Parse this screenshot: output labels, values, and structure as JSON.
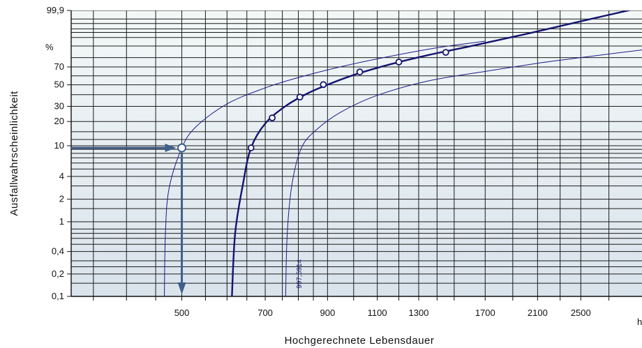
{
  "chart_data": {
    "type": "line",
    "title": "",
    "xlabel": "Hochgerechnete Lebensdauer",
    "ylabel": "Ausfallwahrscheinlichkeit",
    "x_unit_label": "h",
    "y_unit_label": "%",
    "x_scale": "log",
    "xlim": [
      320,
      3200
    ],
    "ylim": [
      0.1,
      99.9
    ],
    "y_scale": "weibull",
    "x_ticks": [
      "500",
      "700",
      "900",
      "1100",
      "1300",
      "1700",
      "2100",
      "2500"
    ],
    "y_ticks": [
      "99,9",
      "70",
      "50",
      "30",
      "20",
      "10",
      "4",
      "2",
      "1",
      "0,4",
      "0,2",
      "0,1"
    ],
    "grid": true,
    "series": [
      {
        "role": "fit",
        "x": [
          612,
          620,
          640,
          661,
          700,
          760,
          830,
          900,
          1000,
          1150,
          1350,
          1600,
          2000,
          2600,
          3200
        ],
        "y": [
          0.1,
          0.7,
          3.2,
          9.4,
          18.9,
          30.2,
          41.2,
          50.1,
          60.9,
          72.4,
          82.4,
          89.8,
          96.4,
          99.5,
          99.95
        ]
      },
      {
        "role": "lower-bound",
        "x": [
          466,
          468,
          475,
          500,
          530,
          600,
          700,
          800,
          950,
          1150,
          1400,
          1700
        ],
        "y": [
          0.1,
          0.7,
          2.8,
          9.4,
          17.4,
          31.9,
          46.8,
          58.0,
          70.3,
          80.9,
          88.7,
          93.1
        ]
      },
      {
        "role": "upper-bound",
        "label": "997,5914",
        "x": [
          760,
          765,
          780,
          810,
          860,
          950,
          1100,
          1350,
          1700,
          2200,
          3200
        ],
        "y": [
          0.1,
          0.7,
          3.2,
          9.4,
          15.8,
          25.8,
          39.4,
          54.2,
          65.0,
          75.8,
          87.0
        ]
      }
    ],
    "points": {
      "x": [
        661,
        720,
        805,
        885,
        1025,
        1200,
        1450
      ],
      "y": [
        9.4,
        22.1,
        37.8,
        50.3,
        64.4,
        75.4,
        84.9
      ]
    },
    "annotation": {
      "x": 500,
      "y": 9.4,
      "arrows": [
        "from y-axis to point",
        "from point down to x-axis"
      ]
    },
    "colors": {
      "grid": "#1c1c1c",
      "fit": "#141470",
      "bounds": "#1b1b8a",
      "points": "#141470",
      "arrow": "#3f5f8a",
      "bg_top": "#f3f8f7",
      "bg_bottom": "#d9e3ec"
    }
  }
}
